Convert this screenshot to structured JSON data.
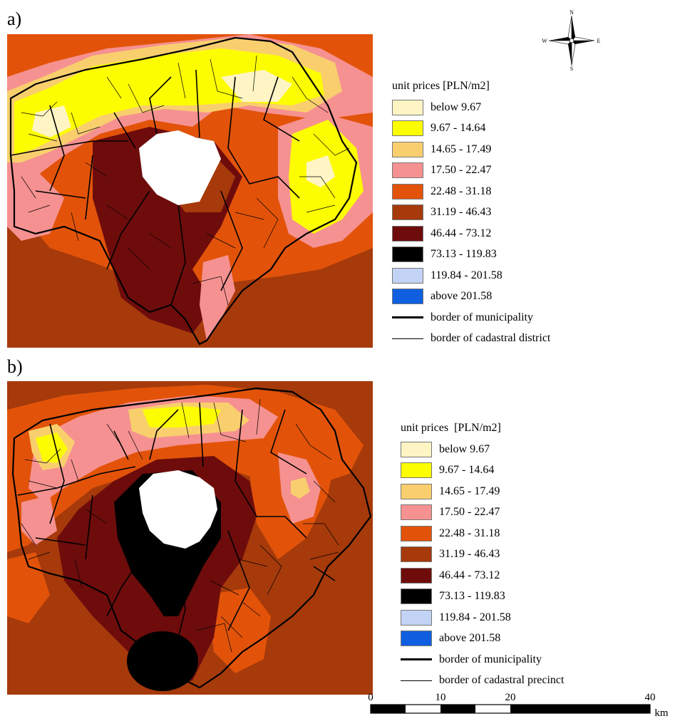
{
  "panel_a": {
    "label": "a)",
    "legend": {
      "title": "unit prices [PLN/m2]",
      "classes": [
        {
          "label": "below 9.67",
          "color": "#fff5c4"
        },
        {
          "label": "9.67 - 14.64",
          "color": "#fdfd01"
        },
        {
          "label": "14.65 - 17.49",
          "color": "#f9cf6e"
        },
        {
          "label": "17.50 - 22.47",
          "color": "#f69191"
        },
        {
          "label": "22.48 - 31.18",
          "color": "#e25309"
        },
        {
          "label": "31.19 - 46.43",
          "color": "#a63a0b"
        },
        {
          "label": "46.44 - 73.12",
          "color": "#6e0c0c"
        },
        {
          "label": "73.13 - 119.83",
          "color": "#000000"
        },
        {
          "label": "119.84 - 201.58",
          "color": "#c2d3f5"
        },
        {
          "label": "above 201.58",
          "color": "#0f5fe0"
        }
      ],
      "lines": [
        {
          "label": "border of municipality"
        },
        {
          "label": "border of cadastral district"
        }
      ]
    }
  },
  "panel_b": {
    "label": "b)",
    "legend": {
      "title": "unit prices  [PLN/m2]",
      "classes": [
        {
          "label": "below 9.67",
          "color": "#fff5c4"
        },
        {
          "label": "9.67 - 14.64",
          "color": "#fdfd01"
        },
        {
          "label": "14.65 - 17.49",
          "color": "#f9cf6e"
        },
        {
          "label": "17.50 - 22.47",
          "color": "#f69191"
        },
        {
          "label": "22.48 - 31.18",
          "color": "#e25309"
        },
        {
          "label": "31.19 - 46.43",
          "color": "#a63a0b"
        },
        {
          "label": "46.44 - 73.12",
          "color": "#6e0c0c"
        },
        {
          "label": "73.13 - 119.83",
          "color": "#000000"
        },
        {
          "label": "119.84 - 201.58",
          "color": "#c2d3f5"
        },
        {
          "label": "above 201.58",
          "color": "#0f5fe0"
        }
      ],
      "lines": [
        {
          "label": "border of municipality"
        },
        {
          "label": "border of cadastral precinct"
        }
      ]
    }
  },
  "compass": {
    "n": "N",
    "s": "S",
    "e": "E",
    "w": "W"
  },
  "scalebar": {
    "ticks": [
      "0",
      "10",
      "20",
      "40"
    ],
    "unit": "km"
  }
}
